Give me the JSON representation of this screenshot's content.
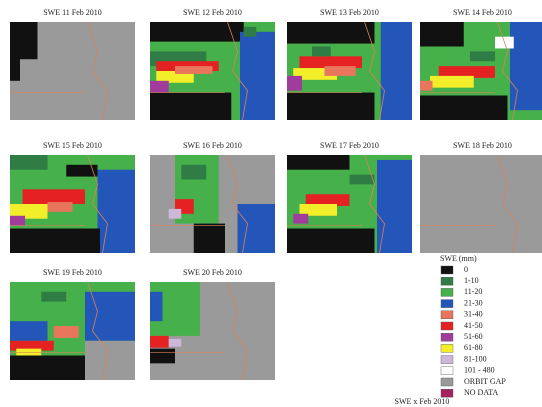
{
  "panels": [
    {
      "title": "SWE 11 Feb 2010"
    },
    {
      "title": "SWE 12 Feb 2010"
    },
    {
      "title": "SWE 13 Feb 2010"
    },
    {
      "title": "SWE 14 Feb 2010"
    },
    {
      "title": "SWE 15 Feb 2010"
    },
    {
      "title": "SWE 16 Feb 2010"
    },
    {
      "title": "SWE 17 Feb 2010"
    },
    {
      "title": "SWE 18 Feb 2010"
    },
    {
      "title": "SWE 19 Feb 2010"
    },
    {
      "title": "SWE 20 Feb 2010"
    }
  ],
  "legend": {
    "title": "SWE (mm)",
    "items": [
      {
        "label": "0",
        "color": "#111111"
      },
      {
        "label": "1-10",
        "color": "#2f7d45"
      },
      {
        "label": "11-20",
        "color": "#46b04a"
      },
      {
        "label": "21-30",
        "color": "#2356b8"
      },
      {
        "label": "31-40",
        "color": "#e8755c"
      },
      {
        "label": "41-50",
        "color": "#e42222"
      },
      {
        "label": "51-60",
        "color": "#a03c9c"
      },
      {
        "label": "61-80",
        "color": "#f2ee2a"
      },
      {
        "label": "81-100",
        "color": "#cdb8dc"
      },
      {
        "label": "101 - 480",
        "color": "#ffffff"
      },
      {
        "label": "ORBIT GAP",
        "color": "#9a9a9a"
      },
      {
        "label": "NO DATA",
        "color": "#a3225c"
      }
    ]
  },
  "caption": "SWE x Feb 2010"
}
